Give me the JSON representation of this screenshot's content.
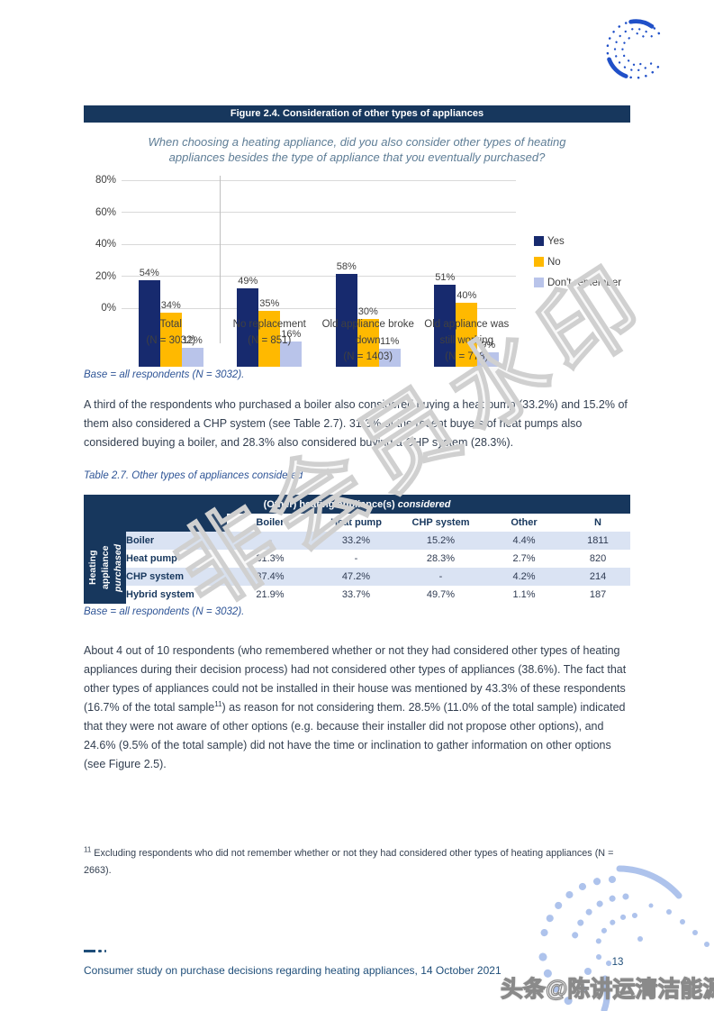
{
  "figure": {
    "title": "Figure 2.4. Consideration of other types of appliances",
    "question": "When choosing a heating appliance, did you also consider other types of heating appliances besides the type of appliance that you eventually purchased?",
    "base_note": "Base = all respondents (N = 3032)."
  },
  "chart_data": {
    "type": "bar",
    "title": "When choosing a heating appliance, did you also consider other types of heating appliances besides the type of appliance that you eventually purchased?",
    "categories": [
      "Total",
      "No replacement",
      "Old appliance broke down",
      "Old appliance was still working"
    ],
    "category_n": [
      "(N = 3032)",
      "(N = 851)",
      "(N = 1403)",
      "(N = 778)"
    ],
    "series": [
      {
        "name": "Yes",
        "color": "#172A6E",
        "values": [
          54,
          49,
          58,
          51
        ]
      },
      {
        "name": "No",
        "color": "#FFB900",
        "values": [
          34,
          35,
          30,
          40
        ]
      },
      {
        "name": "Don't remember",
        "color": "#B9C4EA",
        "values": [
          12,
          16,
          11,
          9
        ]
      }
    ],
    "ylim": [
      0,
      80
    ],
    "yticks": [
      "0%",
      "20%",
      "40%",
      "60%",
      "80%"
    ],
    "grid": true,
    "legend_position": "right",
    "value_suffix": "%"
  },
  "paragraph1": "A third of the respondents who purchased a boiler also considered buying a heat pump (33.2%) and 15.2% of them also considered a CHP system (see Table 2.7). 31.3% of the recent buyers of heat pumps also considered buying a boiler, and 28.3% also considered buying a CHP system (28.3%).",
  "table": {
    "caption": "Table 2.7. Other types of appliances considered",
    "header_main_prefix": "(Other) heating appliance(s) ",
    "header_main_emphasis": "considered",
    "columns": [
      "Boiler",
      "Heat pump",
      "CHP system",
      "Other",
      "N"
    ],
    "row_group_label_line1": "Heating appliance",
    "row_group_label_line2": "purchased",
    "rows": [
      {
        "label": "Boiler",
        "cells": [
          "-",
          "33.2%",
          "15.2%",
          "4.4%",
          "1811"
        ]
      },
      {
        "label": "Heat pump",
        "cells": [
          "31.3%",
          "-",
          "28.3%",
          "2.7%",
          "820"
        ]
      },
      {
        "label": "CHP system",
        "cells": [
          "37.4%",
          "47.2%",
          "-",
          "4.2%",
          "214"
        ]
      },
      {
        "label": "Hybrid system",
        "cells": [
          "21.9%",
          "33.7%",
          "49.7%",
          "1.1%",
          "187"
        ]
      }
    ],
    "base_note": "Base = all respondents (N = 3032)."
  },
  "paragraph2": {
    "part1": "About 4 out of 10 respondents (who remembered whether or not they had considered other types of heating appliances during their decision process) had not considered other types of appliances (38.6%). The fact that other types of appliances could not be installed in their house was mentioned by 43.3% of these respondents (16.7% of the total sample",
    "footnote_ref": "11",
    "part2": ") as reason for not considering them. 28.5% (11.0% of the total sample) indicated that they were not aware of other options (e.g. because their installer did not propose other options), and 24.6% (9.5% of the total sample) did not have the time or inclination to gather information on other options (see Figure 2.5)."
  },
  "footnote": {
    "marker": "11",
    "text": " Excluding respondents who did not remember whether or not they had considered other types of heating appliances (N = 2663)."
  },
  "footer": {
    "text": "Consumer study on purchase decisions regarding heating appliances, 14 October 2021",
    "page_number": "13"
  },
  "watermarks": {
    "center": "非会员水印",
    "bottom": "头条@陈讲运清洁能源"
  },
  "colors": {
    "navy": "#17375D",
    "bar_yes": "#172A6E",
    "bar_no": "#FFB900",
    "bar_dont_remember": "#B9C4EA",
    "logo_blue": "#2050C8",
    "deco_blue": "#AEC3EC",
    "body_text": "#333F50",
    "caption_blue": "#2E5496",
    "footer_blue": "#1F4E79",
    "table_stripe": "#DAE3F3"
  }
}
